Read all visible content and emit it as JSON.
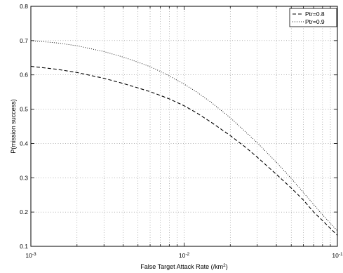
{
  "chart_data": {
    "type": "line",
    "xlabel_prefix": "False Target Attack Rate (/km",
    "xlabel_sup": "2",
    "xlabel_suffix": ")",
    "ylabel": "P(mission success)",
    "x_scale": "log",
    "xlim": [
      0.001,
      0.1
    ],
    "ylim": [
      0.1,
      0.8
    ],
    "grid": true,
    "legend_position": "top-right",
    "x_ticks": [
      {
        "base": "10",
        "exp": "-3",
        "value": 0.001
      },
      {
        "base": "10",
        "exp": "-2",
        "value": 0.01
      },
      {
        "base": "10",
        "exp": "-1",
        "value": 0.1
      }
    ],
    "y_ticks": [
      "0.1",
      "0.2",
      "0.3",
      "0.4",
      "0.5",
      "0.6",
      "0.7",
      "0.8"
    ],
    "series": [
      {
        "name": "Ptr=0.8",
        "style": "dashed",
        "color": "#000000",
        "x": [
          0.001,
          0.0015,
          0.002,
          0.003,
          0.004,
          0.005,
          0.006,
          0.007,
          0.008,
          0.01,
          0.012,
          0.015,
          0.02,
          0.025,
          0.03,
          0.04,
          0.05,
          0.06,
          0.07,
          0.08,
          0.1
        ],
        "y": [
          0.625,
          0.616,
          0.607,
          0.59,
          0.575,
          0.562,
          0.551,
          0.54,
          0.53,
          0.51,
          0.49,
          0.462,
          0.423,
          0.39,
          0.36,
          0.31,
          0.27,
          0.235,
          0.2,
          0.175,
          0.132
        ]
      },
      {
        "name": "Ptr=0.9",
        "style": "dotted",
        "color": "#000000",
        "x": [
          0.001,
          0.0015,
          0.002,
          0.003,
          0.004,
          0.005,
          0.006,
          0.007,
          0.008,
          0.01,
          0.012,
          0.015,
          0.02,
          0.025,
          0.03,
          0.04,
          0.05,
          0.06,
          0.07,
          0.08,
          0.1
        ],
        "y": [
          0.7,
          0.693,
          0.685,
          0.668,
          0.652,
          0.637,
          0.624,
          0.61,
          0.597,
          0.573,
          0.551,
          0.52,
          0.475,
          0.435,
          0.402,
          0.345,
          0.298,
          0.257,
          0.222,
          0.192,
          0.145
        ]
      }
    ]
  }
}
